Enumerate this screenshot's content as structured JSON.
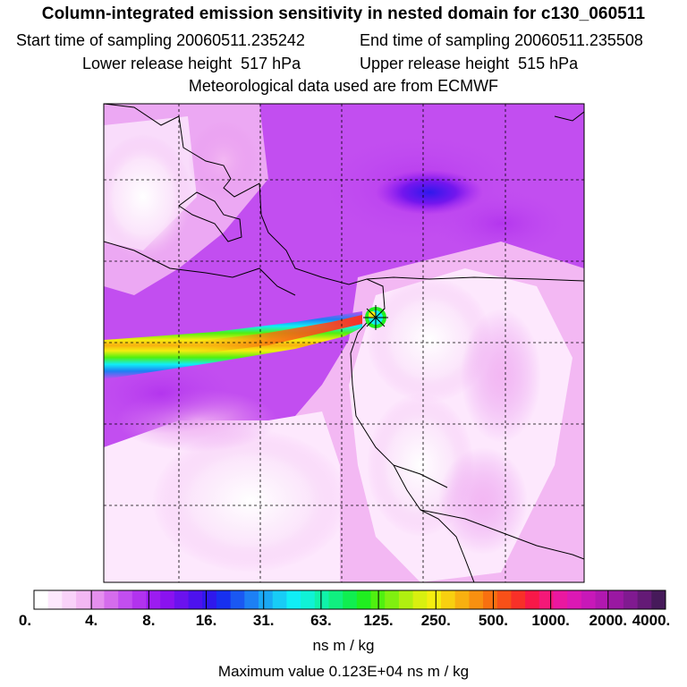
{
  "title": "Column-integrated emission sensitivity in nested domain for c130_060511",
  "sampling": {
    "start_label": "Start time of sampling",
    "start_value": "20060511.235242",
    "end_label": "End time of sampling",
    "end_value": "20060511.235508"
  },
  "release": {
    "lower_label": "Lower release height",
    "lower_value": "517 hPa",
    "upper_label": "Upper release height",
    "upper_value": "515 hPa"
  },
  "met_data": "Meteorological data used are from ECMWF",
  "colorbar": {
    "tick_labels": [
      "0.",
      "4.",
      "8.",
      "16.",
      "31.",
      "63.",
      "125.",
      "250.",
      "500.",
      "1000.",
      "2000.",
      "4000."
    ],
    "colors": [
      "#ffffff",
      "#fde8fd",
      "#f9d2f9",
      "#f3b8f3",
      "#e58fee",
      "#d56cec",
      "#c24ef0",
      "#b233ee",
      "#9c1cf1",
      "#8a12f0",
      "#6b12ee",
      "#4d12ee",
      "#2f18ec",
      "#1730f0",
      "#1a58f2",
      "#1d80f4",
      "#1aa8f4",
      "#18ccf6",
      "#10eef6",
      "#10f2d6",
      "#10f2aa",
      "#10f080",
      "#10ee50",
      "#20ee20",
      "#50f010",
      "#80f010",
      "#b0f010",
      "#d8f010",
      "#f4ee10",
      "#f8d010",
      "#f8b010",
      "#f89010",
      "#f87010",
      "#f85018",
      "#f83028",
      "#f81848",
      "#f41878",
      "#ea18a0",
      "#dc18b4",
      "#c818b8",
      "#b218b0",
      "#9a18a2",
      "#801a90",
      "#641a76",
      "#461a5a"
    ],
    "unit": "ns m / kg"
  },
  "max_value_text": "Maximum value  0.123E+04 ns m / kg",
  "map": {
    "background_color": "#ffffff",
    "release_marker": "asterisk-marker"
  }
}
